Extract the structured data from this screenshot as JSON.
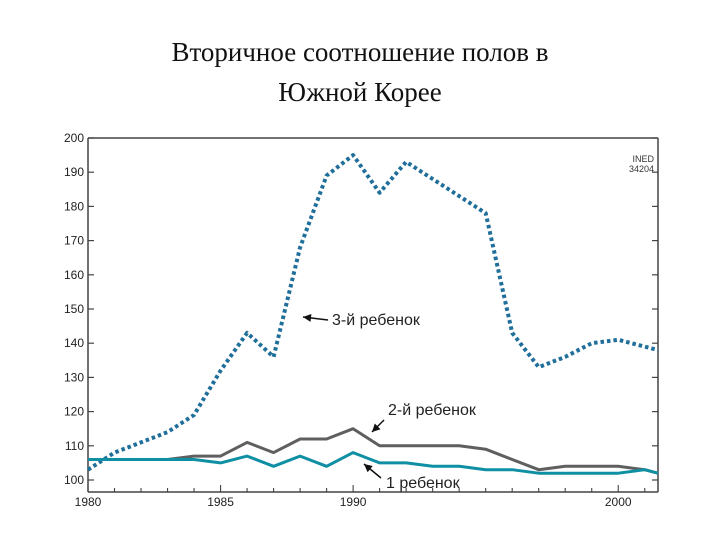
{
  "slide": {
    "title_line1": "Вторичное соотношение полов в",
    "title_line2": "Южной Корее"
  },
  "chart_data": {
    "type": "line",
    "title": "Вторичное соотношение полов в Южной Корее",
    "xlabel": "",
    "ylabel": "",
    "xlim": [
      1980,
      2001.5
    ],
    "ylim": [
      100,
      200
    ],
    "x_ticks": [
      1980,
      1985,
      1990,
      2000
    ],
    "y_ticks": [
      100,
      110,
      120,
      130,
      140,
      150,
      160,
      170,
      180,
      190,
      200
    ],
    "grid": false,
    "source_note": [
      "INED",
      "34204"
    ],
    "series": [
      {
        "name": "3-й ребенок",
        "style": "dotted",
        "color": "#1f6f9a",
        "x": [
          1980,
          1981,
          1982,
          1983,
          1984,
          1985,
          1986,
          1987,
          1988,
          1989,
          1990,
          1991,
          1992,
          1993,
          1994,
          1995,
          1996,
          1997,
          1998,
          1999,
          2000,
          2001,
          2001.5
        ],
        "y": [
          103,
          108,
          111,
          114,
          119,
          132,
          143,
          136,
          168,
          189,
          195,
          184,
          193,
          188,
          183,
          178,
          143,
          133,
          136,
          140,
          141,
          139,
          138
        ]
      },
      {
        "name": "2-й ребенок",
        "style": "solid",
        "color": "#5f5f5f",
        "x": [
          1980,
          1981,
          1982,
          1983,
          1984,
          1985,
          1986,
          1987,
          1988,
          1989,
          1990,
          1991,
          1992,
          1993,
          1994,
          1995,
          1996,
          1997,
          1998,
          1999,
          2000,
          2001,
          2001.5
        ],
        "y": [
          106,
          106,
          106,
          106,
          107,
          107,
          111,
          108,
          112,
          112,
          115,
          110,
          110,
          110,
          110,
          109,
          106,
          103,
          104,
          104,
          104,
          103,
          102
        ]
      },
      {
        "name": "1 ребенок",
        "style": "solid",
        "color": "#0f8fa3",
        "x": [
          1980,
          1981,
          1982,
          1983,
          1984,
          1985,
          1986,
          1987,
          1988,
          1989,
          1990,
          1991,
          1992,
          1993,
          1994,
          1995,
          1996,
          1997,
          1998,
          1999,
          2000,
          2001,
          2001.5
        ],
        "y": [
          106,
          106,
          106,
          106,
          106,
          105,
          107,
          104,
          107,
          104,
          108,
          105,
          105,
          104,
          104,
          103,
          103,
          102,
          102,
          102,
          102,
          103,
          102
        ]
      }
    ]
  }
}
